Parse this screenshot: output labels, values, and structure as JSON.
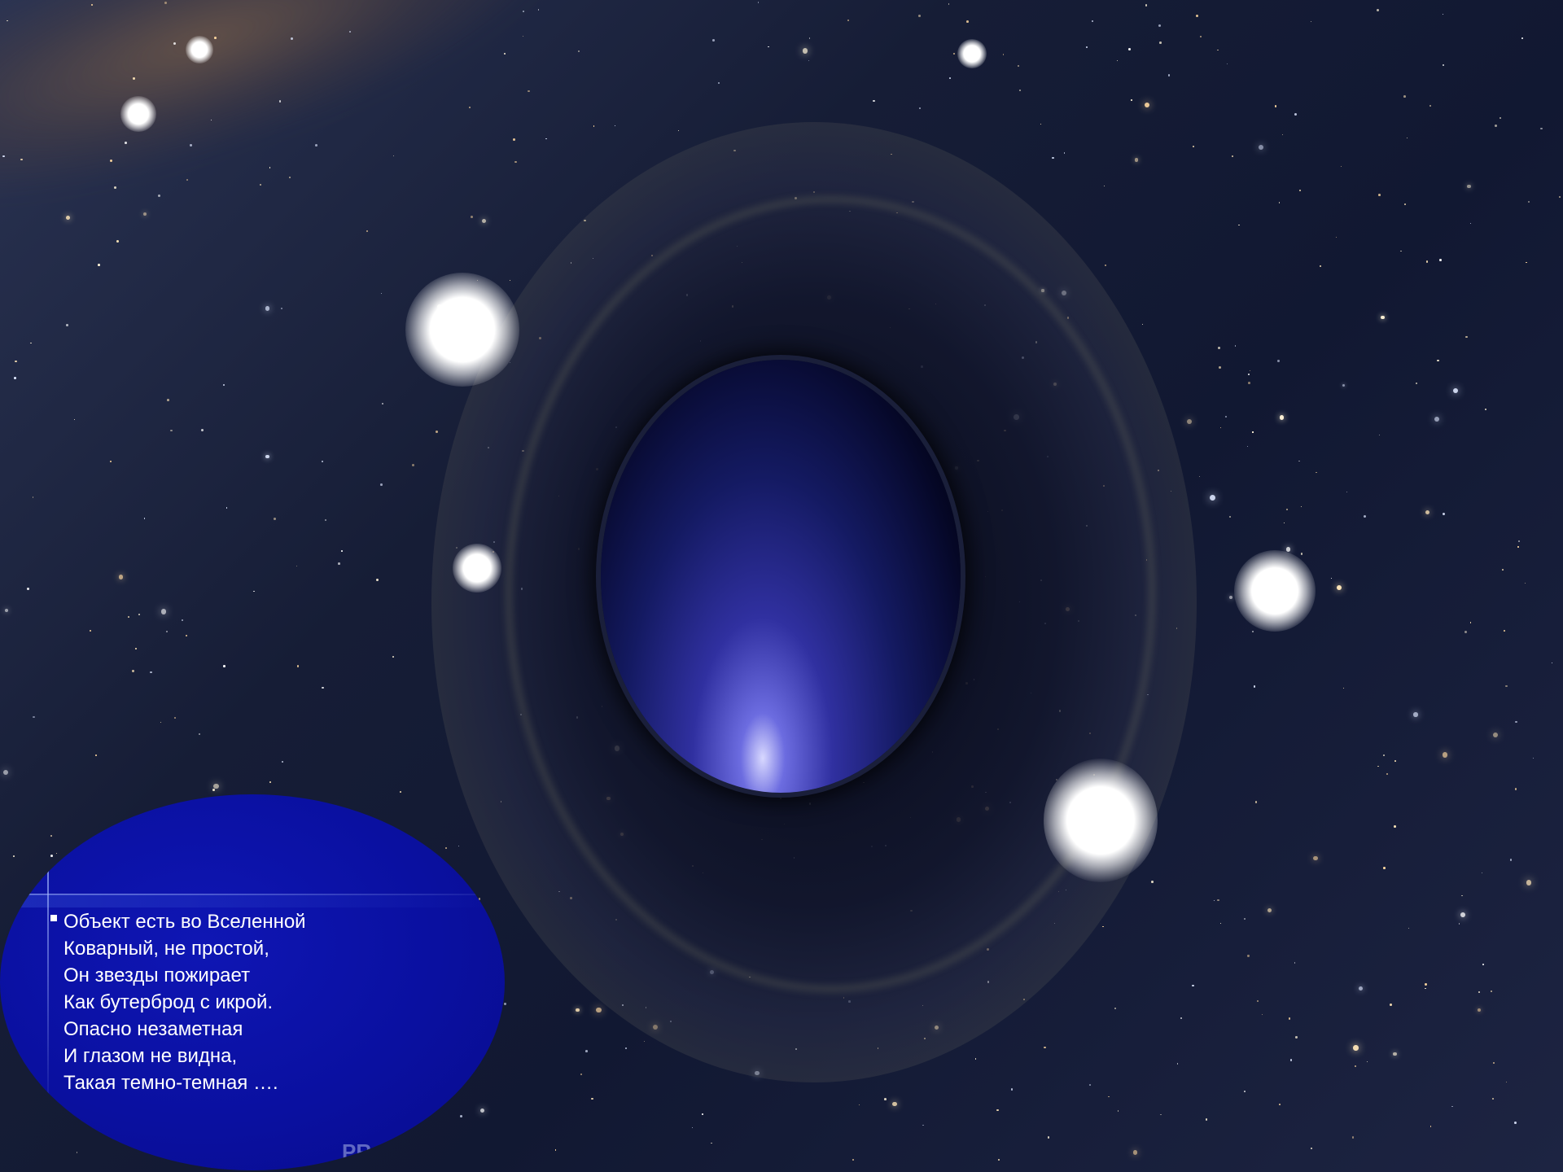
{
  "slide": {
    "poem_lines": [
      "Объект есть во Вселенной",
      "Коварный, не простой,",
      "Он звезды пожирает",
      "Как бутерброд с икрой.",
      "Опасно незаметная",
      "И глазом не видна,",
      "Такая темно-темная …."
    ],
    "corner_text": "PR"
  },
  "colors": {
    "bubble_fill": "#0a10a0",
    "text": "#ffffff",
    "space_background": "#161d36"
  }
}
